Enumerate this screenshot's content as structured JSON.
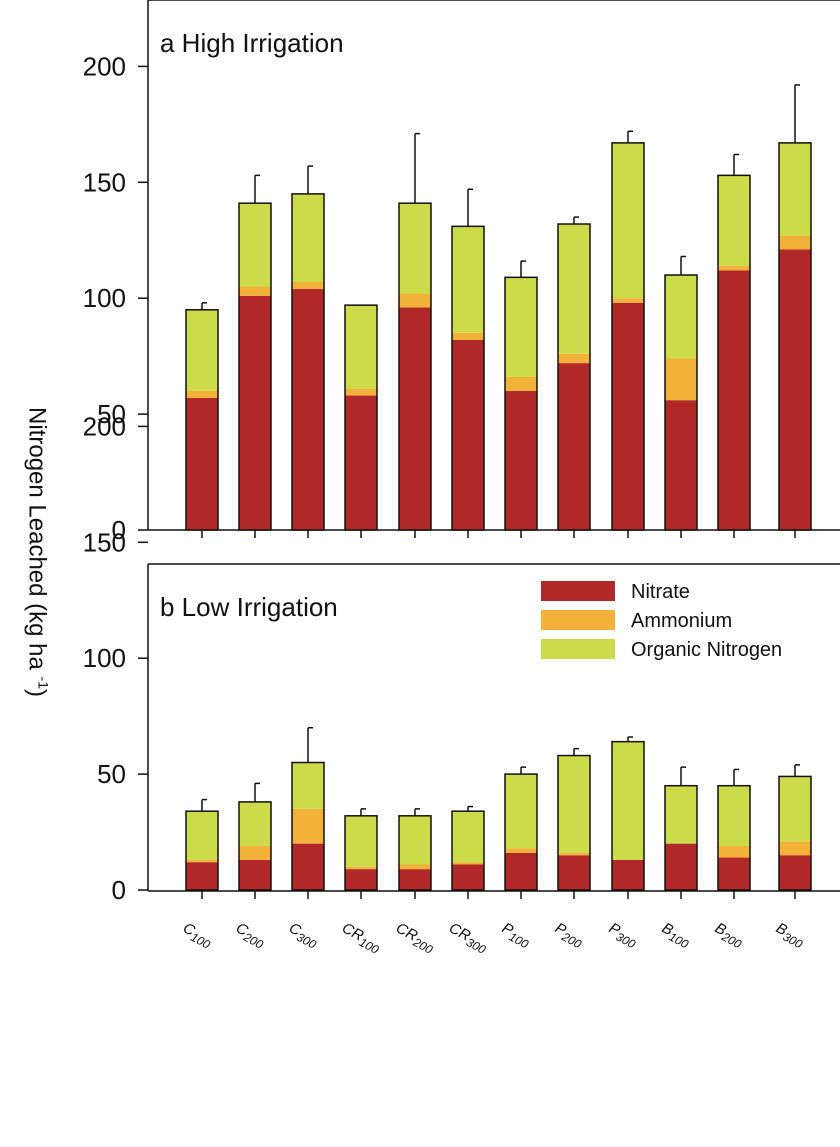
{
  "chart_data": [
    {
      "type": "bar",
      "stacked": true,
      "title": "a High Irrigation",
      "categories": [
        "C100",
        "C200",
        "C300",
        "CR100",
        "CR200",
        "CR300",
        "P100",
        "P200",
        "P300",
        "B100",
        "B200",
        "B300"
      ],
      "series": [
        {
          "name": "Nitrate",
          "values": [
            57,
            101,
            104,
            58,
            96,
            82,
            60,
            72,
            98,
            56,
            112,
            121
          ]
        },
        {
          "name": "Ammonium",
          "values": [
            3,
            4,
            3,
            3,
            6,
            3,
            6,
            4,
            2,
            18,
            2,
            6
          ]
        },
        {
          "name": "Organic Nitrogen",
          "values": [
            35,
            36,
            38,
            36,
            39,
            46,
            43,
            56,
            67,
            36,
            39,
            40
          ]
        }
      ],
      "error": [
        3,
        12,
        12,
        0,
        30,
        16,
        7,
        3,
        5,
        8,
        9,
        25
      ],
      "ylim": [
        0,
        220
      ],
      "yticks": [
        0,
        50,
        100,
        150,
        200
      ],
      "ylabel": "Nitrogen Leached (kg ha",
      "ylabel_sup": "-1",
      "ylabel_close": ")"
    },
    {
      "type": "bar",
      "stacked": true,
      "title": "b Low Irrigation",
      "categories": [
        "C100",
        "C200",
        "C300",
        "CR100",
        "CR200",
        "CR300",
        "P100",
        "P200",
        "P300",
        "B100",
        "B200",
        "B300"
      ],
      "series": [
        {
          "name": "Nitrate",
          "values": [
            12,
            13,
            20,
            9,
            9,
            11,
            16,
            15,
            13,
            20,
            14,
            15
          ]
        },
        {
          "name": "Ammonium",
          "values": [
            1,
            6,
            15,
            1,
            2,
            1,
            2,
            1,
            0,
            0,
            5,
            6
          ]
        },
        {
          "name": "Organic Nitrogen",
          "values": [
            21,
            19,
            20,
            22,
            21,
            22,
            32,
            42,
            51,
            25,
            26,
            28
          ]
        }
      ],
      "error": [
        5,
        8,
        15,
        3,
        3,
        2,
        3,
        3,
        2,
        8,
        7,
        5
      ],
      "ylim": [
        0,
        220
      ],
      "yticks": [
        0,
        50,
        100,
        150,
        200
      ],
      "legend": [
        "Nitrate",
        "Ammonium",
        "Organic Nitrogen"
      ],
      "legend_position": "top-right"
    }
  ],
  "colors": {
    "Nitrate": "#B02828",
    "Ammonium": "#F2B138",
    "Organic Nitrogen": "#CCDB49",
    "axis": "#111111"
  }
}
